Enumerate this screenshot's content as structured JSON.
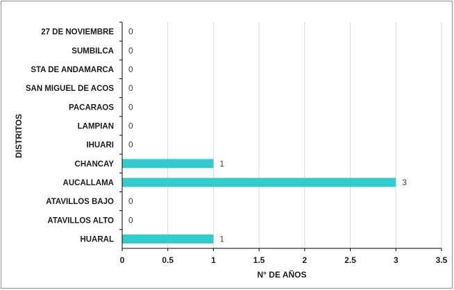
{
  "chart_data": {
    "type": "bar",
    "orientation": "horizontal",
    "title": "",
    "xlabel": "N° DE AÑOS",
    "ylabel": "DISTRITOS",
    "categories": [
      "27 DE NOVIEMBRE",
      "SUMBILCA",
      "STA DE ANDAMARCA",
      "SAN MIGUEL DE ACOS",
      "PACARAOS",
      "LAMPIAN",
      "IHUARI",
      "CHANCAY",
      "AUCALLAMA",
      "ATAVILLOS BAJO",
      "ATAVILLOS ALTO",
      "HUARAL"
    ],
    "values": [
      0,
      0,
      0,
      0,
      0,
      0,
      0,
      1,
      3,
      0,
      0,
      1
    ],
    "data_labels": [
      "0",
      "0",
      "0",
      "0",
      "0",
      "0",
      "0",
      "1",
      "3",
      "0",
      "0",
      "1"
    ],
    "xlim": [
      0,
      3.5
    ],
    "x_ticks": [
      "0",
      "0.5",
      "1",
      "1.5",
      "2",
      "2.5",
      "3",
      "3.5"
    ],
    "x_tick_values": [
      0,
      0.5,
      1,
      1.5,
      2,
      2.5,
      3,
      3.5
    ],
    "grid": "vertical",
    "legend": "none",
    "colors": {
      "bar": "#33CCCC",
      "grid": "#d9d9d9",
      "axis": "#000000",
      "border": "#8c8c8c"
    }
  }
}
